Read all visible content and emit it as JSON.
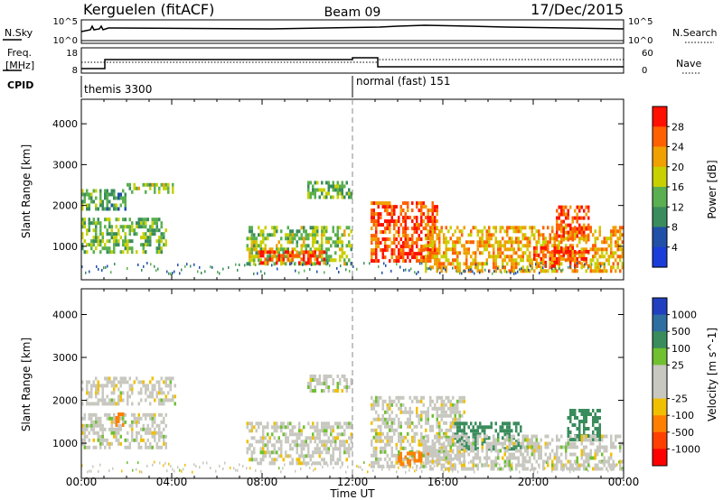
{
  "header": {
    "station": "Kerguelen (fitACF)",
    "beam": "Beam 09",
    "date": "17/Dec/2015"
  },
  "panels": {
    "nsky": {
      "label": "N.Sky",
      "ticks": [
        "10^5",
        "10^0"
      ],
      "right_label": "N.Search",
      "right_ticks": [
        "10^5",
        "10^0"
      ]
    },
    "freq": {
      "label_line1": "Freq.",
      "label_line2": "[MHz]",
      "ticks": [
        "18",
        "8"
      ],
      "right_label": "Nave",
      "right_ticks": [
        "60",
        "0"
      ]
    },
    "cpid": {
      "label": "CPID",
      "modes": [
        "themis 3300",
        "normal (fast) 151"
      ]
    }
  },
  "colors": {
    "power_scale": [
      "#1a3cd8",
      "#2050a8",
      "#3a8c5c",
      "#5ab050",
      "#c8d000",
      "#f0a000",
      "#ff6000",
      "#ff1000"
    ],
    "velocity_scale": [
      "#2040c0",
      "#2e6ea0",
      "#3a8c5c",
      "#70c030",
      "#c8c8c0",
      "#c8c8c0",
      "#f0c000",
      "#ff8000",
      "#ff4000",
      "#ff0000"
    ],
    "gray": "#c8c8c0"
  },
  "chart_data": [
    {
      "type": "heatmap",
      "title": "",
      "xlabel": "Time UT",
      "ylabel": "Slant Range [km]",
      "xlim": [
        "00:00",
        "24:00"
      ],
      "ylim": [
        180,
        4600
      ],
      "x_ticks": [
        "00:00",
        "04:00",
        "08:00",
        "12:00",
        "16:00",
        "20:00",
        "00:00"
      ],
      "y_ticks": [
        1000,
        2000,
        3000,
        4000
      ],
      "colorbar": {
        "label": "Power [dB]",
        "ticks": [
          "28",
          "24",
          "20",
          "16",
          "12",
          "8",
          "4"
        ]
      },
      "scatter_regions": [
        {
          "t0": 0.0,
          "t1": 3.8,
          "r0": 900,
          "r1": 1700,
          "power": 14
        },
        {
          "t0": 0.0,
          "t1": 2.0,
          "r0": 1900,
          "r1": 2400,
          "power": 12
        },
        {
          "t0": 2.0,
          "t1": 4.2,
          "r0": 2350,
          "r1": 2550,
          "power": 16
        },
        {
          "t0": 7.3,
          "t1": 12.0,
          "r0": 550,
          "r1": 1500,
          "power": 16
        },
        {
          "t0": 7.8,
          "t1": 10.8,
          "r0": 550,
          "r1": 900,
          "power": 27
        },
        {
          "t0": 10.0,
          "t1": 12.0,
          "r0": 2200,
          "r1": 2600,
          "power": 14
        },
        {
          "t0": 12.8,
          "t1": 15.8,
          "r0": 600,
          "r1": 2100,
          "power": 27
        },
        {
          "t0": 15.2,
          "t1": 24.0,
          "r0": 400,
          "r1": 1500,
          "power": 22
        },
        {
          "t0": 20.0,
          "t1": 22.5,
          "r0": 500,
          "r1": 1000,
          "power": 28
        },
        {
          "t0": 21.0,
          "t1": 22.5,
          "r0": 1200,
          "r1": 2000,
          "power": 27
        }
      ]
    },
    {
      "type": "heatmap",
      "title": "",
      "xlabel": "Time UT",
      "ylabel": "Slant Range [km]",
      "xlim": [
        "00:00",
        "24:00"
      ],
      "ylim": [
        180,
        4600
      ],
      "x_ticks": [
        "00:00",
        "04:00",
        "08:00",
        "12:00",
        "16:00",
        "20:00",
        "00:00"
      ],
      "y_ticks": [
        1000,
        2000,
        3000,
        4000
      ],
      "colorbar": {
        "label": "Velocity [m s^-1]",
        "ticks": [
          "1000",
          "500",
          "100",
          "25",
          "-25",
          "-100",
          "-500",
          "-1000"
        ]
      },
      "scatter_regions": [
        {
          "t0": 0.0,
          "t1": 3.8,
          "r0": 900,
          "r1": 1700,
          "velocity": 0
        },
        {
          "t0": 0.0,
          "t1": 4.2,
          "r0": 1900,
          "r1": 2550,
          "velocity": 0
        },
        {
          "t0": 1.5,
          "t1": 2.0,
          "r0": 1400,
          "r1": 1800,
          "velocity": -300
        },
        {
          "t0": 7.3,
          "t1": 12.0,
          "r0": 550,
          "r1": 1500,
          "velocity": 0
        },
        {
          "t0": 10.0,
          "t1": 12.0,
          "r0": 2200,
          "r1": 2600,
          "velocity": 0
        },
        {
          "t0": 12.8,
          "t1": 17.0,
          "r0": 500,
          "r1": 2100,
          "velocity": 0
        },
        {
          "t0": 14.0,
          "t1": 15.5,
          "r0": 500,
          "r1": 800,
          "velocity": -200
        },
        {
          "t0": 16.5,
          "t1": 19.5,
          "r0": 900,
          "r1": 1500,
          "velocity": 200
        },
        {
          "t0": 21.5,
          "t1": 23.0,
          "r0": 1100,
          "r1": 1800,
          "velocity": 200
        },
        {
          "t0": 15.2,
          "t1": 24.0,
          "r0": 400,
          "r1": 1200,
          "velocity": 0
        }
      ]
    }
  ]
}
